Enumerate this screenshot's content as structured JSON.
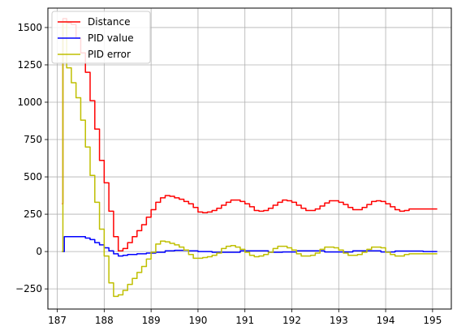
{
  "chart_data": {
    "type": "line",
    "xlim": [
      186.8,
      195.4
    ],
    "ylim": [
      -385,
      1630
    ],
    "grid": true,
    "legend_position": "top-left",
    "x_ticks": [
      187,
      188,
      189,
      190,
      191,
      192,
      193,
      194,
      195
    ],
    "x_tick_labels": [
      "187",
      "188",
      "189",
      "190",
      "191",
      "192",
      "193",
      "194",
      "195"
    ],
    "y_ticks": [
      -250,
      0,
      250,
      500,
      750,
      1000,
      1250,
      1500
    ],
    "y_tick_labels": [
      "−250",
      "0",
      "250",
      "500",
      "750",
      "1000",
      "1250",
      "1500"
    ],
    "series": [
      {
        "name": "Distance",
        "color": "#ff0000",
        "step": true,
        "x": [
          187.1,
          187.12,
          187.2,
          187.3,
          187.4,
          187.5,
          187.6,
          187.7,
          187.8,
          187.9,
          188.0,
          188.1,
          188.2,
          188.3,
          188.4,
          188.5,
          188.6,
          188.7,
          188.8,
          188.9,
          189.0,
          189.1,
          189.2,
          189.3,
          189.4,
          189.5,
          189.6,
          189.7,
          189.8,
          189.9,
          190.0,
          190.1,
          190.2,
          190.3,
          190.4,
          190.5,
          190.6,
          190.7,
          190.8,
          190.9,
          191.0,
          191.1,
          191.2,
          191.3,
          191.4,
          191.5,
          191.6,
          191.7,
          191.8,
          191.9,
          192.0,
          192.1,
          192.2,
          192.3,
          192.4,
          192.5,
          192.6,
          192.7,
          192.8,
          192.9,
          193.0,
          193.1,
          193.2,
          193.3,
          193.4,
          193.5,
          193.6,
          193.7,
          193.8,
          193.9,
          194.0,
          194.1,
          194.2,
          194.3,
          194.4,
          194.5,
          194.6,
          194.7,
          194.8,
          194.9,
          195.0,
          195.1
        ],
        "y": [
          320,
          1560,
          1530,
          1520,
          1430,
          1330,
          1200,
          1010,
          820,
          610,
          460,
          270,
          100,
          5,
          20,
          60,
          100,
          140,
          180,
          230,
          280,
          330,
          360,
          375,
          370,
          360,
          350,
          335,
          320,
          295,
          265,
          260,
          265,
          275,
          290,
          310,
          330,
          345,
          345,
          335,
          320,
          300,
          275,
          270,
          275,
          290,
          310,
          330,
          345,
          340,
          330,
          310,
          290,
          275,
          275,
          285,
          305,
          325,
          340,
          340,
          330,
          315,
          295,
          280,
          280,
          295,
          315,
          335,
          340,
          335,
          320,
          300,
          280,
          270,
          275,
          285,
          285,
          285,
          285,
          285,
          285,
          285
        ]
      },
      {
        "name": "PID value",
        "color": "#0000ff",
        "step": true,
        "x": [
          187.1,
          187.15,
          187.3,
          187.4,
          187.5,
          187.6,
          187.7,
          187.8,
          187.9,
          188.0,
          188.1,
          188.2,
          188.3,
          188.4,
          188.5,
          188.7,
          188.9,
          189.1,
          189.3,
          189.5,
          189.8,
          190.0,
          190.3,
          190.6,
          190.9,
          191.2,
          191.5,
          191.8,
          192.1,
          192.4,
          192.7,
          193.0,
          193.3,
          193.6,
          193.9,
          194.2,
          194.5,
          194.8,
          195.1
        ],
        "y": [
          0,
          100,
          100,
          100,
          100,
          90,
          80,
          60,
          45,
          25,
          5,
          -15,
          -30,
          -25,
          -20,
          -15,
          -10,
          -5,
          5,
          8,
          5,
          0,
          -5,
          -5,
          5,
          5,
          -5,
          -3,
          5,
          5,
          -3,
          -3,
          5,
          5,
          -3,
          3,
          3,
          0,
          0
        ]
      },
      {
        "name": "PID error",
        "color": "#bfbf00",
        "step": true,
        "x": [
          187.1,
          187.12,
          187.2,
          187.3,
          187.4,
          187.5,
          187.6,
          187.7,
          187.8,
          187.9,
          188.0,
          188.1,
          188.2,
          188.3,
          188.4,
          188.5,
          188.6,
          188.7,
          188.8,
          188.9,
          189.0,
          189.1,
          189.2,
          189.3,
          189.4,
          189.5,
          189.6,
          189.7,
          189.8,
          189.9,
          190.0,
          190.1,
          190.2,
          190.3,
          190.4,
          190.5,
          190.6,
          190.7,
          190.8,
          190.9,
          191.0,
          191.1,
          191.2,
          191.3,
          191.4,
          191.5,
          191.6,
          191.7,
          191.8,
          191.9,
          192.0,
          192.1,
          192.2,
          192.3,
          192.4,
          192.5,
          192.6,
          192.7,
          192.8,
          192.9,
          193.0,
          193.1,
          193.2,
          193.3,
          193.4,
          193.5,
          193.6,
          193.7,
          193.8,
          193.9,
          194.0,
          194.1,
          194.2,
          194.3,
          194.4,
          194.5,
          194.6,
          194.7,
          194.8,
          194.9,
          195.0,
          195.1
        ],
        "y": [
          0,
          1540,
          1230,
          1130,
          1030,
          880,
          700,
          510,
          330,
          150,
          -30,
          -210,
          -300,
          -290,
          -260,
          -220,
          -180,
          -140,
          -100,
          -50,
          -5,
          50,
          70,
          65,
          55,
          45,
          30,
          10,
          -20,
          -45,
          -45,
          -40,
          -35,
          -25,
          -10,
          20,
          35,
          40,
          30,
          15,
          -5,
          -25,
          -35,
          -30,
          -20,
          -5,
          20,
          35,
          35,
          25,
          10,
          -15,
          -30,
          -30,
          -25,
          -10,
          15,
          30,
          30,
          25,
          10,
          -10,
          -25,
          -25,
          -20,
          -5,
          15,
          30,
          30,
          25,
          -5,
          -20,
          -30,
          -30,
          -20,
          -15,
          -15,
          -15,
          -15,
          -15,
          -15,
          -15
        ]
      }
    ]
  }
}
